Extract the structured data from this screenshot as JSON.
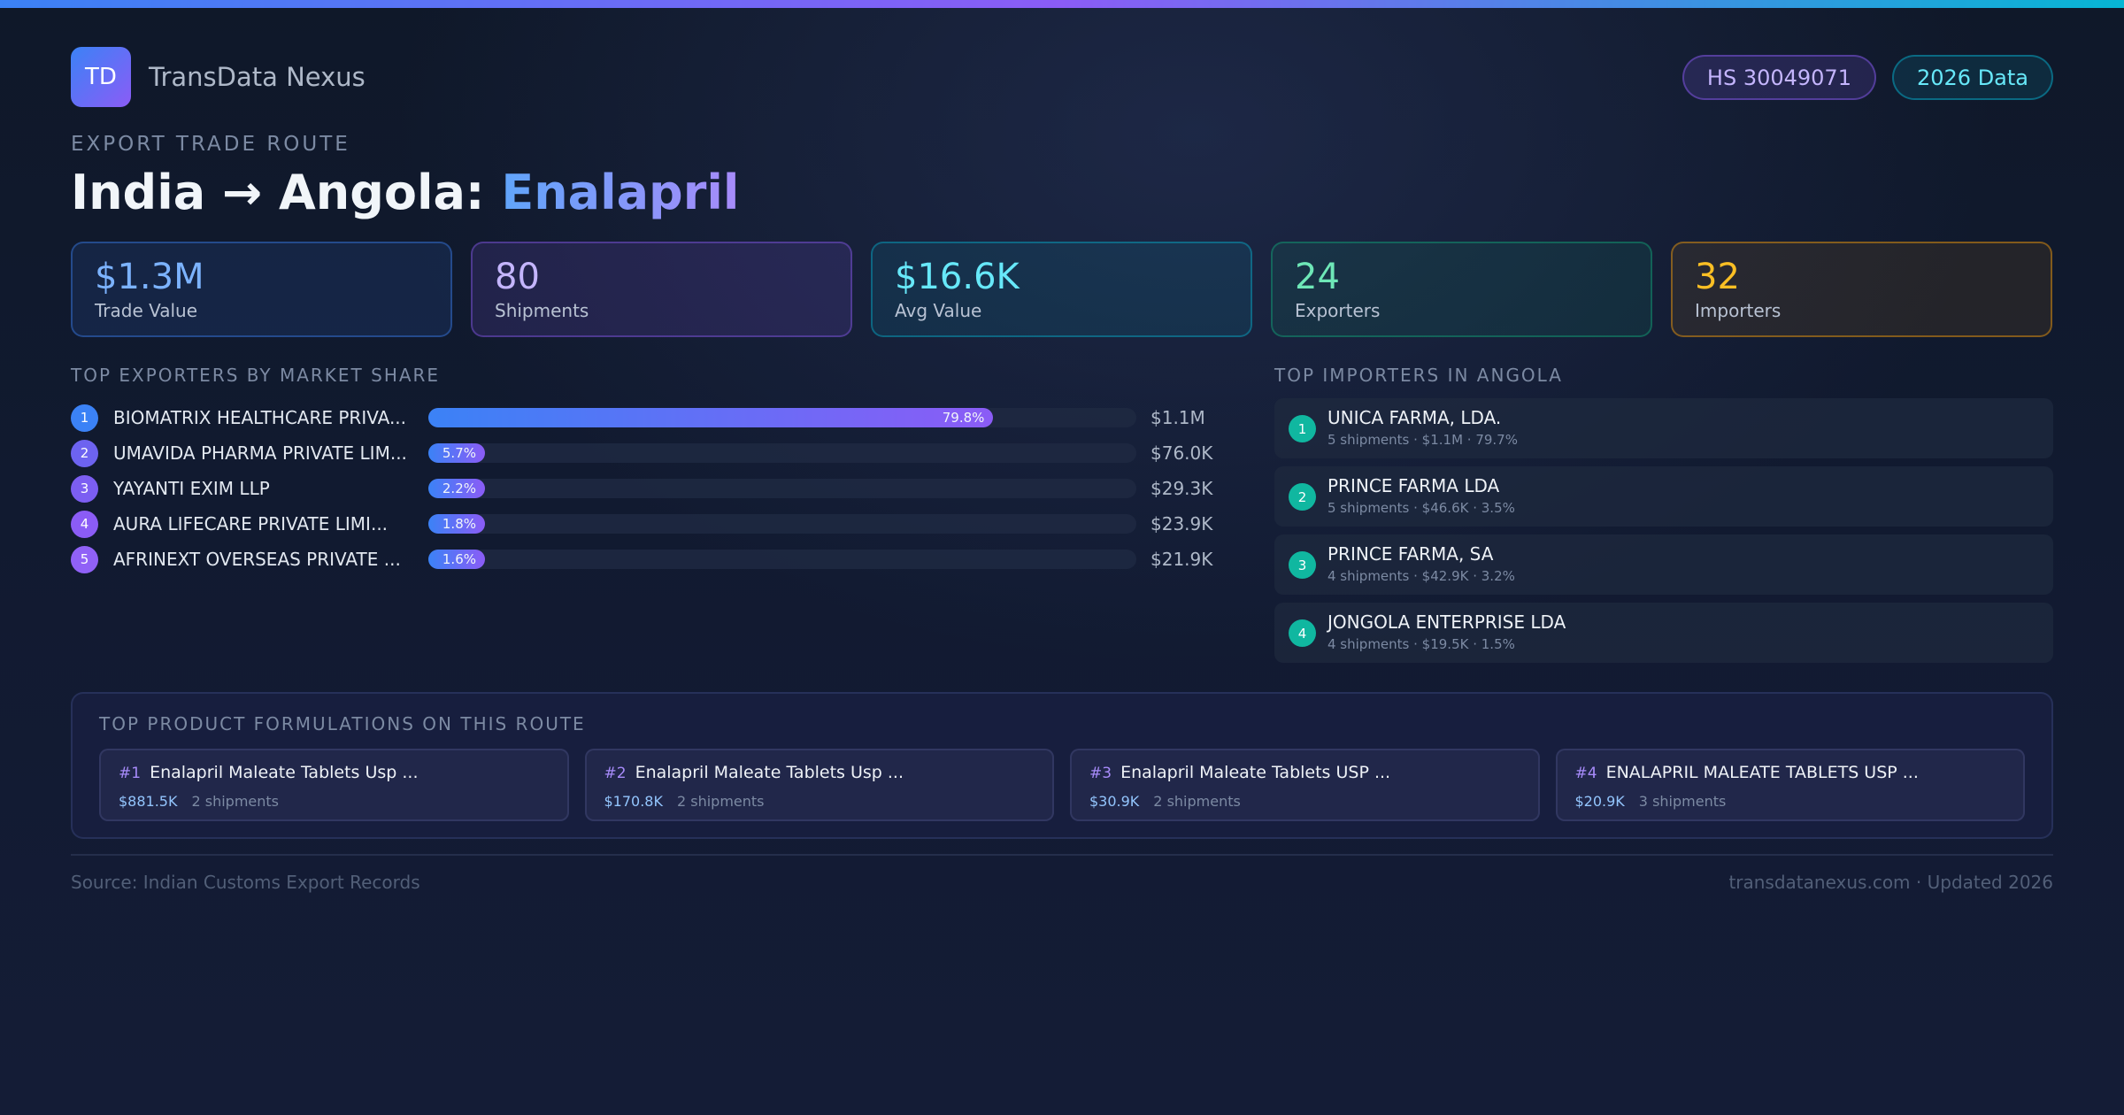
{
  "brand": {
    "logo": "TD",
    "name": "TransData Nexus"
  },
  "badges": {
    "hs": "HS 30049071",
    "year": "2026 Data"
  },
  "header": {
    "kicker": "EXPORT TRADE ROUTE",
    "route": "India → Angola: ",
    "product": "Enalapril"
  },
  "stats": [
    {
      "value": "$1.3M",
      "label": "Trade Value"
    },
    {
      "value": "80",
      "label": "Shipments"
    },
    {
      "value": "$16.6K",
      "label": "Avg Value"
    },
    {
      "value": "24",
      "label": "Exporters"
    },
    {
      "value": "32",
      "label": "Importers"
    }
  ],
  "exporters": {
    "title": "TOP EXPORTERS BY MARKET SHARE",
    "items": [
      {
        "rank": "1",
        "name": "BIOMATRIX HEALTHCARE PRIVA...",
        "share_label": "79.8%",
        "share": 79.8,
        "value": "$1.1M",
        "color": "#3b82f6"
      },
      {
        "rank": "2",
        "name": "UMAVIDA PHARMA PRIVATE LIM...",
        "share_label": "5.7%",
        "share": 5.7,
        "value": "$76.0K",
        "color": "#6d63f0"
      },
      {
        "rank": "3",
        "name": "YAYANTI EXIM LLP",
        "share_label": "2.2%",
        "share": 2.2,
        "value": "$29.3K",
        "color": "#7c5ef2"
      },
      {
        "rank": "4",
        "name": "AURA LIFECARE PRIVATE LIMI...",
        "share_label": "1.8%",
        "share": 1.8,
        "value": "$23.9K",
        "color": "#8b5cf6"
      },
      {
        "rank": "5",
        "name": "AFRINEXT OVERSEAS PRIVATE ...",
        "share_label": "1.6%",
        "share": 1.6,
        "value": "$21.9K",
        "color": "#9061f7"
      }
    ]
  },
  "importers": {
    "title": "TOP IMPORTERS IN ANGOLA",
    "items": [
      {
        "rank": "1",
        "name": "UNICA FARMA, LDA.",
        "meta": "5 shipments · $1.1M · 79.7%"
      },
      {
        "rank": "2",
        "name": "PRINCE FARMA LDA",
        "meta": "5 shipments · $46.6K · 3.5%"
      },
      {
        "rank": "3",
        "name": "PRINCE FARMA, SA",
        "meta": "4 shipments · $42.9K · 3.2%"
      },
      {
        "rank": "4",
        "name": "JONGOLA ENTERPRISE LDA",
        "meta": "4 shipments · $19.5K · 1.5%"
      }
    ]
  },
  "formulations": {
    "title": "TOP PRODUCT FORMULATIONS ON THIS ROUTE",
    "items": [
      {
        "rank": "#1",
        "name": "Enalapril Maleate Tablets Usp ...",
        "value": "$881.5K",
        "shipments": "2 shipments"
      },
      {
        "rank": "#2",
        "name": "Enalapril Maleate Tablets Usp ...",
        "value": "$170.8K",
        "shipments": "2 shipments"
      },
      {
        "rank": "#3",
        "name": "Enalapril Maleate Tablets USP ...",
        "value": "$30.9K",
        "shipments": "2 shipments"
      },
      {
        "rank": "#4",
        "name": "ENALAPRIL MALEATE TABLETS USP ...",
        "value": "$20.9K",
        "shipments": "3 shipments"
      }
    ]
  },
  "footer": {
    "source": "Source: Indian Customs Export Records",
    "site": "transdatanexus.com · Updated 2026"
  }
}
